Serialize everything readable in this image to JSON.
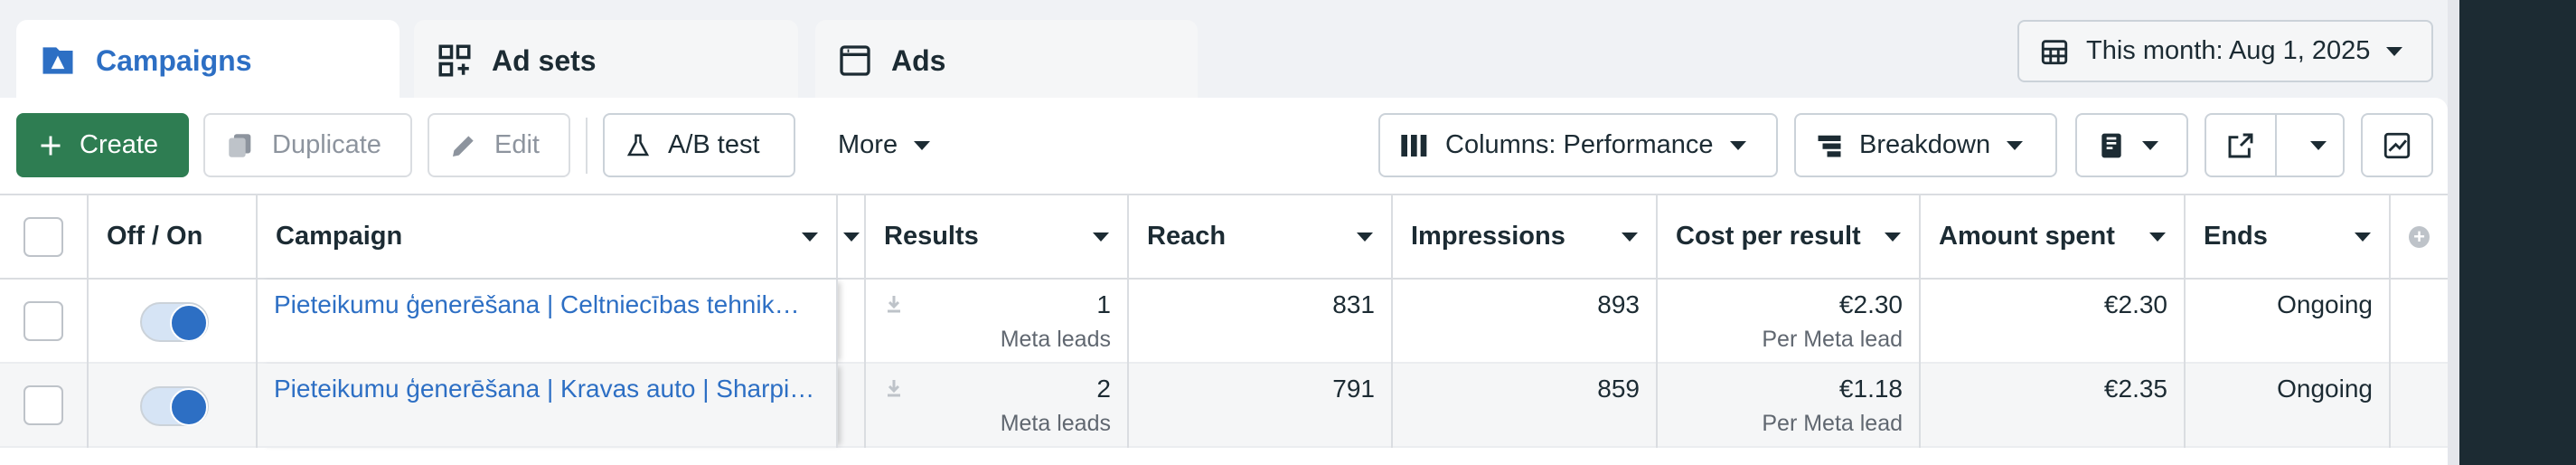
{
  "tabs": [
    "Campaigns",
    "Ad sets",
    "Ads"
  ],
  "date_range": "This month: Aug 1, 2025",
  "toolbar": {
    "create": "Create",
    "duplicate": "Duplicate",
    "edit": "Edit",
    "ab_test": "A/B test",
    "more": "More",
    "columns": "Columns: Performance",
    "breakdown": "Breakdown"
  },
  "table": {
    "headers": [
      "Off / On",
      "Campaign",
      "Results",
      "Reach",
      "Impressions",
      "Cost per result",
      "Amount spent",
      "Ends"
    ],
    "rows": [
      {
        "on": true,
        "campaign": "Pieteikumu ģenerēšana | Celtniecības tehnik…",
        "results": 1,
        "results_label": "Meta leads",
        "reach": 831,
        "impressions": 893,
        "cost_per_result": "€2.30",
        "cost_label": "Per Meta lead",
        "amount_spent": "€2.30",
        "ends": "Ongoing"
      },
      {
        "on": true,
        "campaign": "Pieteikumu ģenerēšana | Kravas auto | Sharpi…",
        "results": 2,
        "results_label": "Meta leads",
        "reach": 791,
        "impressions": 859,
        "cost_per_result": "€1.18",
        "cost_label": "Per Meta lead",
        "amount_spent": "€2.35",
        "ends": "Ongoing"
      }
    ]
  }
}
